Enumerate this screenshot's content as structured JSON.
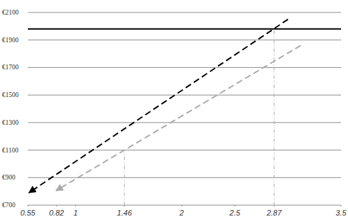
{
  "chart_data": {
    "type": "line",
    "xlim": [
      0.55,
      3.5
    ],
    "xticks": [
      0.55,
      0.82,
      1,
      1.46,
      2,
      2.5,
      2.87,
      3.5
    ],
    "ylim": [
      700,
      2100
    ],
    "yticks": [
      {
        "value": 700,
        "label": "€700"
      },
      {
        "value": 900,
        "label": "€900"
      },
      {
        "value": 1100,
        "label": "€1100"
      },
      {
        "value": 1300,
        "label": "€1300"
      },
      {
        "value": 1500,
        "label": "€1500"
      },
      {
        "value": 1700,
        "label": "€1700"
      },
      {
        "value": 1900,
        "label": "€1900"
      },
      {
        "value": 2100,
        "label": "€2100"
      }
    ],
    "grid": true,
    "series": [
      {
        "type": "line",
        "color": "#000000",
        "line_style": "solid",
        "x": [
          0.55,
          3.5
        ],
        "values": [
          1980,
          1980
        ]
      },
      {
        "type": "line",
        "color": "#000000",
        "line_style": "dashed",
        "marker": "arrow",
        "x": [
          3.0,
          0.56
        ],
        "values": [
          2050,
          790
        ]
      },
      {
        "type": "line",
        "color": "#aaaaaa",
        "line_style": "dashed",
        "marker": "arrow",
        "x": [
          3.12,
          0.815
        ],
        "values": [
          1860,
          805
        ]
      },
      {
        "type": "line",
        "color": "#aaaaaa",
        "line_style": "dashdot",
        "x": [
          1.46,
          1.46
        ],
        "values": [
          700,
          1100
        ]
      },
      {
        "type": "line",
        "color": "#aaaaaa",
        "line_style": "dashdot",
        "x": [
          2.87,
          2.87
        ],
        "values": [
          700,
          1980
        ]
      }
    ]
  }
}
